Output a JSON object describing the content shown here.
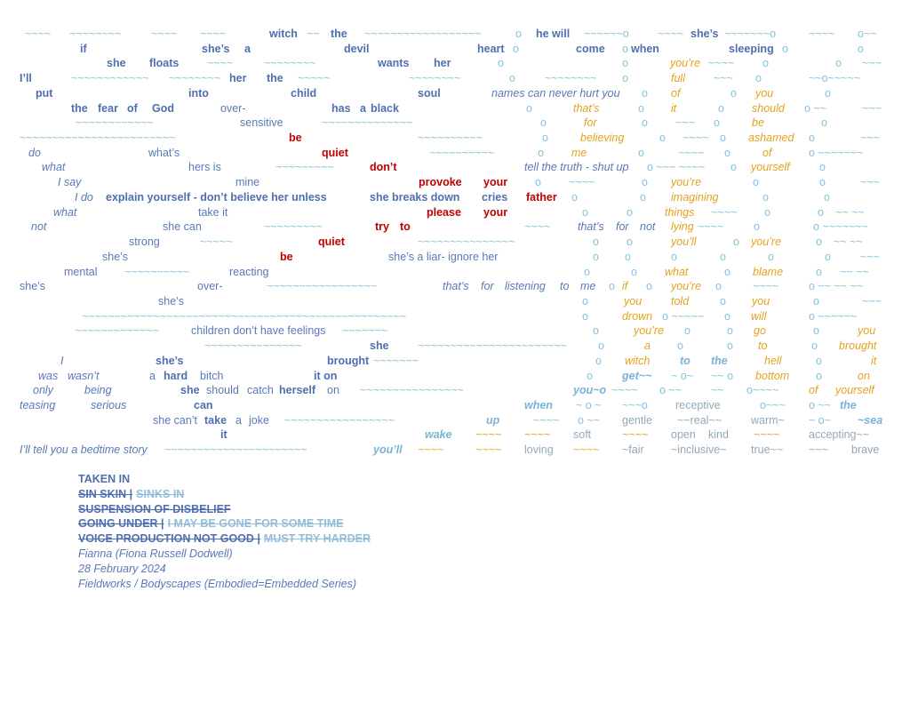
{
  "poem": {
    "lines": [
      [
        "~~~~",
        "~~~~~~~~",
        "~~~~",
        "~~~~",
        "witch",
        "~~",
        "the",
        "~~~~~~~~~~~~~~~~~~",
        "o",
        "he will",
        "~~~~~~o",
        "~~~~",
        "she’s",
        "~~~~~~~o",
        "~~~~",
        "o~~"
      ],
      [
        "if",
        "she’s",
        "a",
        "devil",
        "heart",
        "o",
        "come",
        "o",
        "when",
        "sleeping",
        "o",
        "o"
      ],
      [
        "she",
        "floats",
        "~~~~",
        "~~~~~~~~",
        "wants",
        "her",
        "o",
        "o",
        "you’re",
        "~~~~",
        "o",
        "o",
        "~~~"
      ],
      [
        "I’ll",
        "~~~~~~~~~~~~",
        "~~~~~~~~",
        "her",
        "the",
        "~~~~~",
        "~~~~~~~~",
        "o",
        "~~~~~~~~",
        "o",
        "full",
        "~~~",
        "o",
        "~~o~~~~~"
      ],
      [
        "put",
        "into",
        "child",
        "soul",
        "names can never hurt you",
        "o",
        "of",
        "o",
        "you",
        "o"
      ],
      [
        "the",
        "fear",
        "of",
        "God",
        "over-",
        "has",
        "a",
        "black",
        "o",
        "that’s",
        "o",
        "it",
        "o",
        "should",
        "o ~~",
        "~~~"
      ],
      [
        "~~~~~~~~~~~~",
        "sensitive",
        "~~~~~~~~~~~~~~",
        "o",
        "for",
        "o",
        "~~~",
        "o",
        "be",
        "o"
      ],
      [
        "~~~~~~~~~~~~~~~~~~~~~~~~",
        "be",
        "~~~~~~~~~~",
        "o",
        "believing",
        "o",
        "~~~~",
        "o",
        "ashamed",
        "o",
        "~~~"
      ],
      [
        "do",
        "what’s",
        "quiet",
        "~~~~~~~~~~",
        "o",
        "me",
        "o",
        "~~~~",
        "o",
        "of",
        "o ~~~~~~~"
      ],
      [
        "what",
        "hers is",
        "~~~~~~~~~",
        "don’t",
        "tell the truth -  shut up",
        "o ~~~ ~~~~",
        "o",
        "yourself",
        "o"
      ],
      [
        "I say",
        "mine",
        "provoke",
        "your",
        "o",
        "~~~~",
        "o",
        "you’re",
        "o",
        "o",
        "~~~"
      ],
      [
        "I do",
        "explain yourself  -  don’t believe her unless",
        "she breaks down",
        "cries",
        "father",
        "o",
        "o",
        "imagining",
        "o",
        "o"
      ],
      [
        "what",
        "take it",
        "please",
        "your",
        "o",
        "o",
        "things",
        "~~~~",
        "o",
        "o",
        "~~ ~~"
      ],
      [
        "not",
        "she can",
        "~~~~~~~~~",
        "try",
        "to",
        "~~~~",
        "that’s",
        "for",
        "not",
        "lying",
        "~~~~",
        "o",
        "o ~~~~~~~"
      ],
      [
        "strong",
        "~~~~~",
        "quiet",
        "~~~~~~~~~~~~~~~",
        "o",
        "o",
        "you’ll",
        "o",
        "you’re",
        "o",
        "~~ ~~"
      ],
      [
        "she’s",
        "be",
        "she’s a liar- ignore her",
        "o",
        "o",
        "o",
        "o",
        "o",
        "o",
        "~~~"
      ],
      [
        "mental",
        "~~~~~~~~~~",
        "reacting",
        "o",
        "o",
        "what",
        "o",
        "blame",
        "o",
        "~~ ~~"
      ],
      [
        "she’s",
        "over-",
        "~~~~~~~~~~~~~~~~~",
        "that’s",
        "for",
        "listening",
        "to",
        "me",
        "o",
        "if",
        "o",
        "you’re",
        "o",
        "~~~~",
        "o ~~ ~~ ~~"
      ],
      [
        "she’s",
        "o",
        "you",
        "told",
        "o",
        "you",
        "o",
        "~~~"
      ],
      [
        "~~~~~~~~~~~~~~~~~~~~~~~~~~~~~~~~~~~~~~~~~~~~~~~~~~",
        "o",
        "drown",
        "o ~~~~~",
        "o",
        "will",
        "o ~~~~~~"
      ],
      [
        "~~~~~~~~~~~~~",
        "children don’t have feelings",
        "~~~~~~~",
        "o",
        "you’re",
        "o",
        "o",
        "go",
        "o",
        "you"
      ],
      [
        "~~~~~~~~~~~~~~~",
        "she",
        "~~~~~~~~~~~~~~~~~~~~~~~",
        "o",
        "a",
        "o",
        "o",
        "to",
        "o",
        "brought"
      ],
      [
        "I",
        "she’s",
        "brought",
        "~~~~~~~",
        "o",
        "witch",
        "to",
        "the",
        "hell",
        "o",
        "it"
      ],
      [
        "was",
        "wasn’t",
        "a",
        "hard",
        "bitch",
        "it on",
        "o",
        "get~~",
        "~ o~",
        "~~ o",
        "bottom",
        "o",
        "on"
      ],
      [
        "only",
        "being",
        "she",
        "should",
        "catch",
        "herself",
        "on",
        "~~~~~~~~~~~~~~~~",
        "you~o",
        "~~~~",
        "o ~~",
        "~~",
        "o~~~~",
        "of",
        "yourself"
      ],
      [
        "teasing",
        "serious",
        "can",
        "when",
        "~ o ~",
        "~~~o",
        "receptive",
        "o~~~",
        "o ~~",
        "the"
      ],
      [
        "she can’t",
        "take",
        "a",
        "joke",
        "~~~~~~~~~~~~~~~~~",
        "up",
        "~~~~",
        "o ~~",
        "gentle",
        "~~real~~",
        "warm~",
        "~ o~",
        "~sea"
      ],
      [
        "it",
        "wake",
        "~~~~",
        "~~~~",
        "soft",
        "~~~~",
        "open",
        "kind",
        "~~~~",
        "accepting~~"
      ],
      [
        "I’ll tell you a bedtime story",
        "~~~~~~~~~~~~~~~~~~~~~~",
        "you’ll",
        "~~~~",
        "~~~~",
        "loving",
        "~~~~",
        "~fair",
        "~inclusive~",
        "true~~",
        "~~~",
        "brave"
      ]
    ]
  },
  "footer": {
    "title": "TAKEN IN",
    "struck": [
      [
        "SIN SKIN |",
        "SINKS IN"
      ],
      [
        "SUSPENSION OF DISBELIEF"
      ],
      [
        "GOING UNDER |",
        "I MAY BE GONE FOR SOME TIME"
      ],
      [
        "VOICE PRODUCTION NOT GOOD |",
        "MUST TRY HARDER"
      ]
    ],
    "author": "Fianna (Fiona Russell Dodwell)",
    "date": "28 February 2024",
    "series": "Fieldworks / Bodyscapes (Embodied=Embedded Series)"
  }
}
